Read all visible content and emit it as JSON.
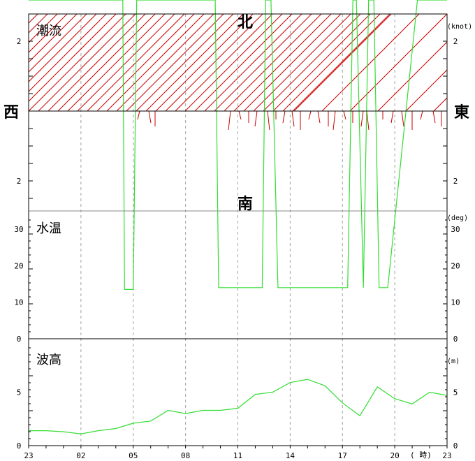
{
  "colors": {
    "background": "#ffffff",
    "frame": "#000000",
    "grid": "#a0a0a0",
    "current_hatch": "#cc0000",
    "current_arrows": "#cc0000",
    "water_temp_line": "#33dd33",
    "wave_line": "#33dd33"
  },
  "panels": {
    "current": {
      "title": "潮流",
      "unit": "(knot)",
      "north": "北",
      "south": "南",
      "west": "西",
      "east": "東"
    },
    "temp": {
      "title": "水温",
      "unit": "(deg)"
    },
    "wave": {
      "title": "波高",
      "unit": "(m)"
    }
  },
  "x_axis": {
    "ticks": [
      "23",
      "02",
      "05",
      "08",
      "11",
      "14",
      "17",
      "20",
      "23"
    ],
    "suffix": "( 時)"
  },
  "chart_data": [
    {
      "panel": "潮流",
      "type": "area",
      "ylabel": "(knot)",
      "y_ticks_left": [
        "2",
        "2"
      ],
      "y_ticks_right": [
        "2",
        "2"
      ],
      "note": "hatched red = current direction band, red tick marks = current vectors",
      "x": [
        "23",
        "00",
        "01",
        "02",
        "03",
        "04",
        "05",
        "06",
        "07",
        "08",
        "09",
        "10",
        "11",
        "12",
        "13",
        "14",
        "15",
        "16",
        "17",
        "18",
        "19",
        "20",
        "21",
        "22",
        "23"
      ],
      "values": [
        2,
        2,
        2,
        2,
        2,
        2,
        2,
        0.3,
        2,
        2,
        2,
        2,
        0.3,
        0.5,
        0.5,
        0.4,
        0.5,
        0.6,
        0.5,
        0.4,
        0.5,
        0.4,
        0.5,
        0.6,
        0.5
      ]
    },
    {
      "panel": "水温",
      "type": "line",
      "ylabel": "(deg)",
      "ylim": [
        0,
        35
      ],
      "y_ticks": [
        "0",
        "10",
        "20",
        "30"
      ],
      "x": [
        23,
        5.4,
        5.5,
        6.0,
        6.2,
        10.7,
        10.9,
        13.4,
        13.6,
        13.9,
        14.3,
        14.5,
        18.3,
        18.6,
        18.8,
        19.2,
        19.5,
        19.8,
        20.1,
        20.4,
        20.6,
        22.3,
        22.6,
        23
      ],
      "x_note": "hours from 23:00 start",
      "values": [
        38,
        38,
        13.5,
        13.5,
        38,
        38,
        14,
        14,
        38,
        38,
        14,
        14,
        14,
        38,
        38,
        14,
        38,
        38,
        14,
        14,
        14,
        38,
        38,
        38
      ]
    },
    {
      "panel": "波高",
      "type": "line",
      "ylabel": "(m)",
      "ylim": [
        0,
        10
      ],
      "y_ticks": [
        "0",
        "5"
      ],
      "x": [
        "23",
        "00",
        "01",
        "02",
        "03",
        "04",
        "05",
        "06",
        "07",
        "08",
        "09",
        "10",
        "11",
        "12",
        "13",
        "14",
        "15",
        "16",
        "17",
        "18",
        "19",
        "20",
        "21",
        "22",
        "23"
      ],
      "values": [
        1.4,
        1.4,
        1.3,
        1.1,
        1.4,
        1.6,
        2.1,
        2.3,
        3.3,
        3.0,
        3.3,
        3.3,
        3.5,
        4.8,
        5.0,
        5.9,
        6.2,
        5.6,
        4.0,
        2.8,
        5.5,
        4.4,
        3.9,
        5.0,
        4.7
      ]
    }
  ]
}
